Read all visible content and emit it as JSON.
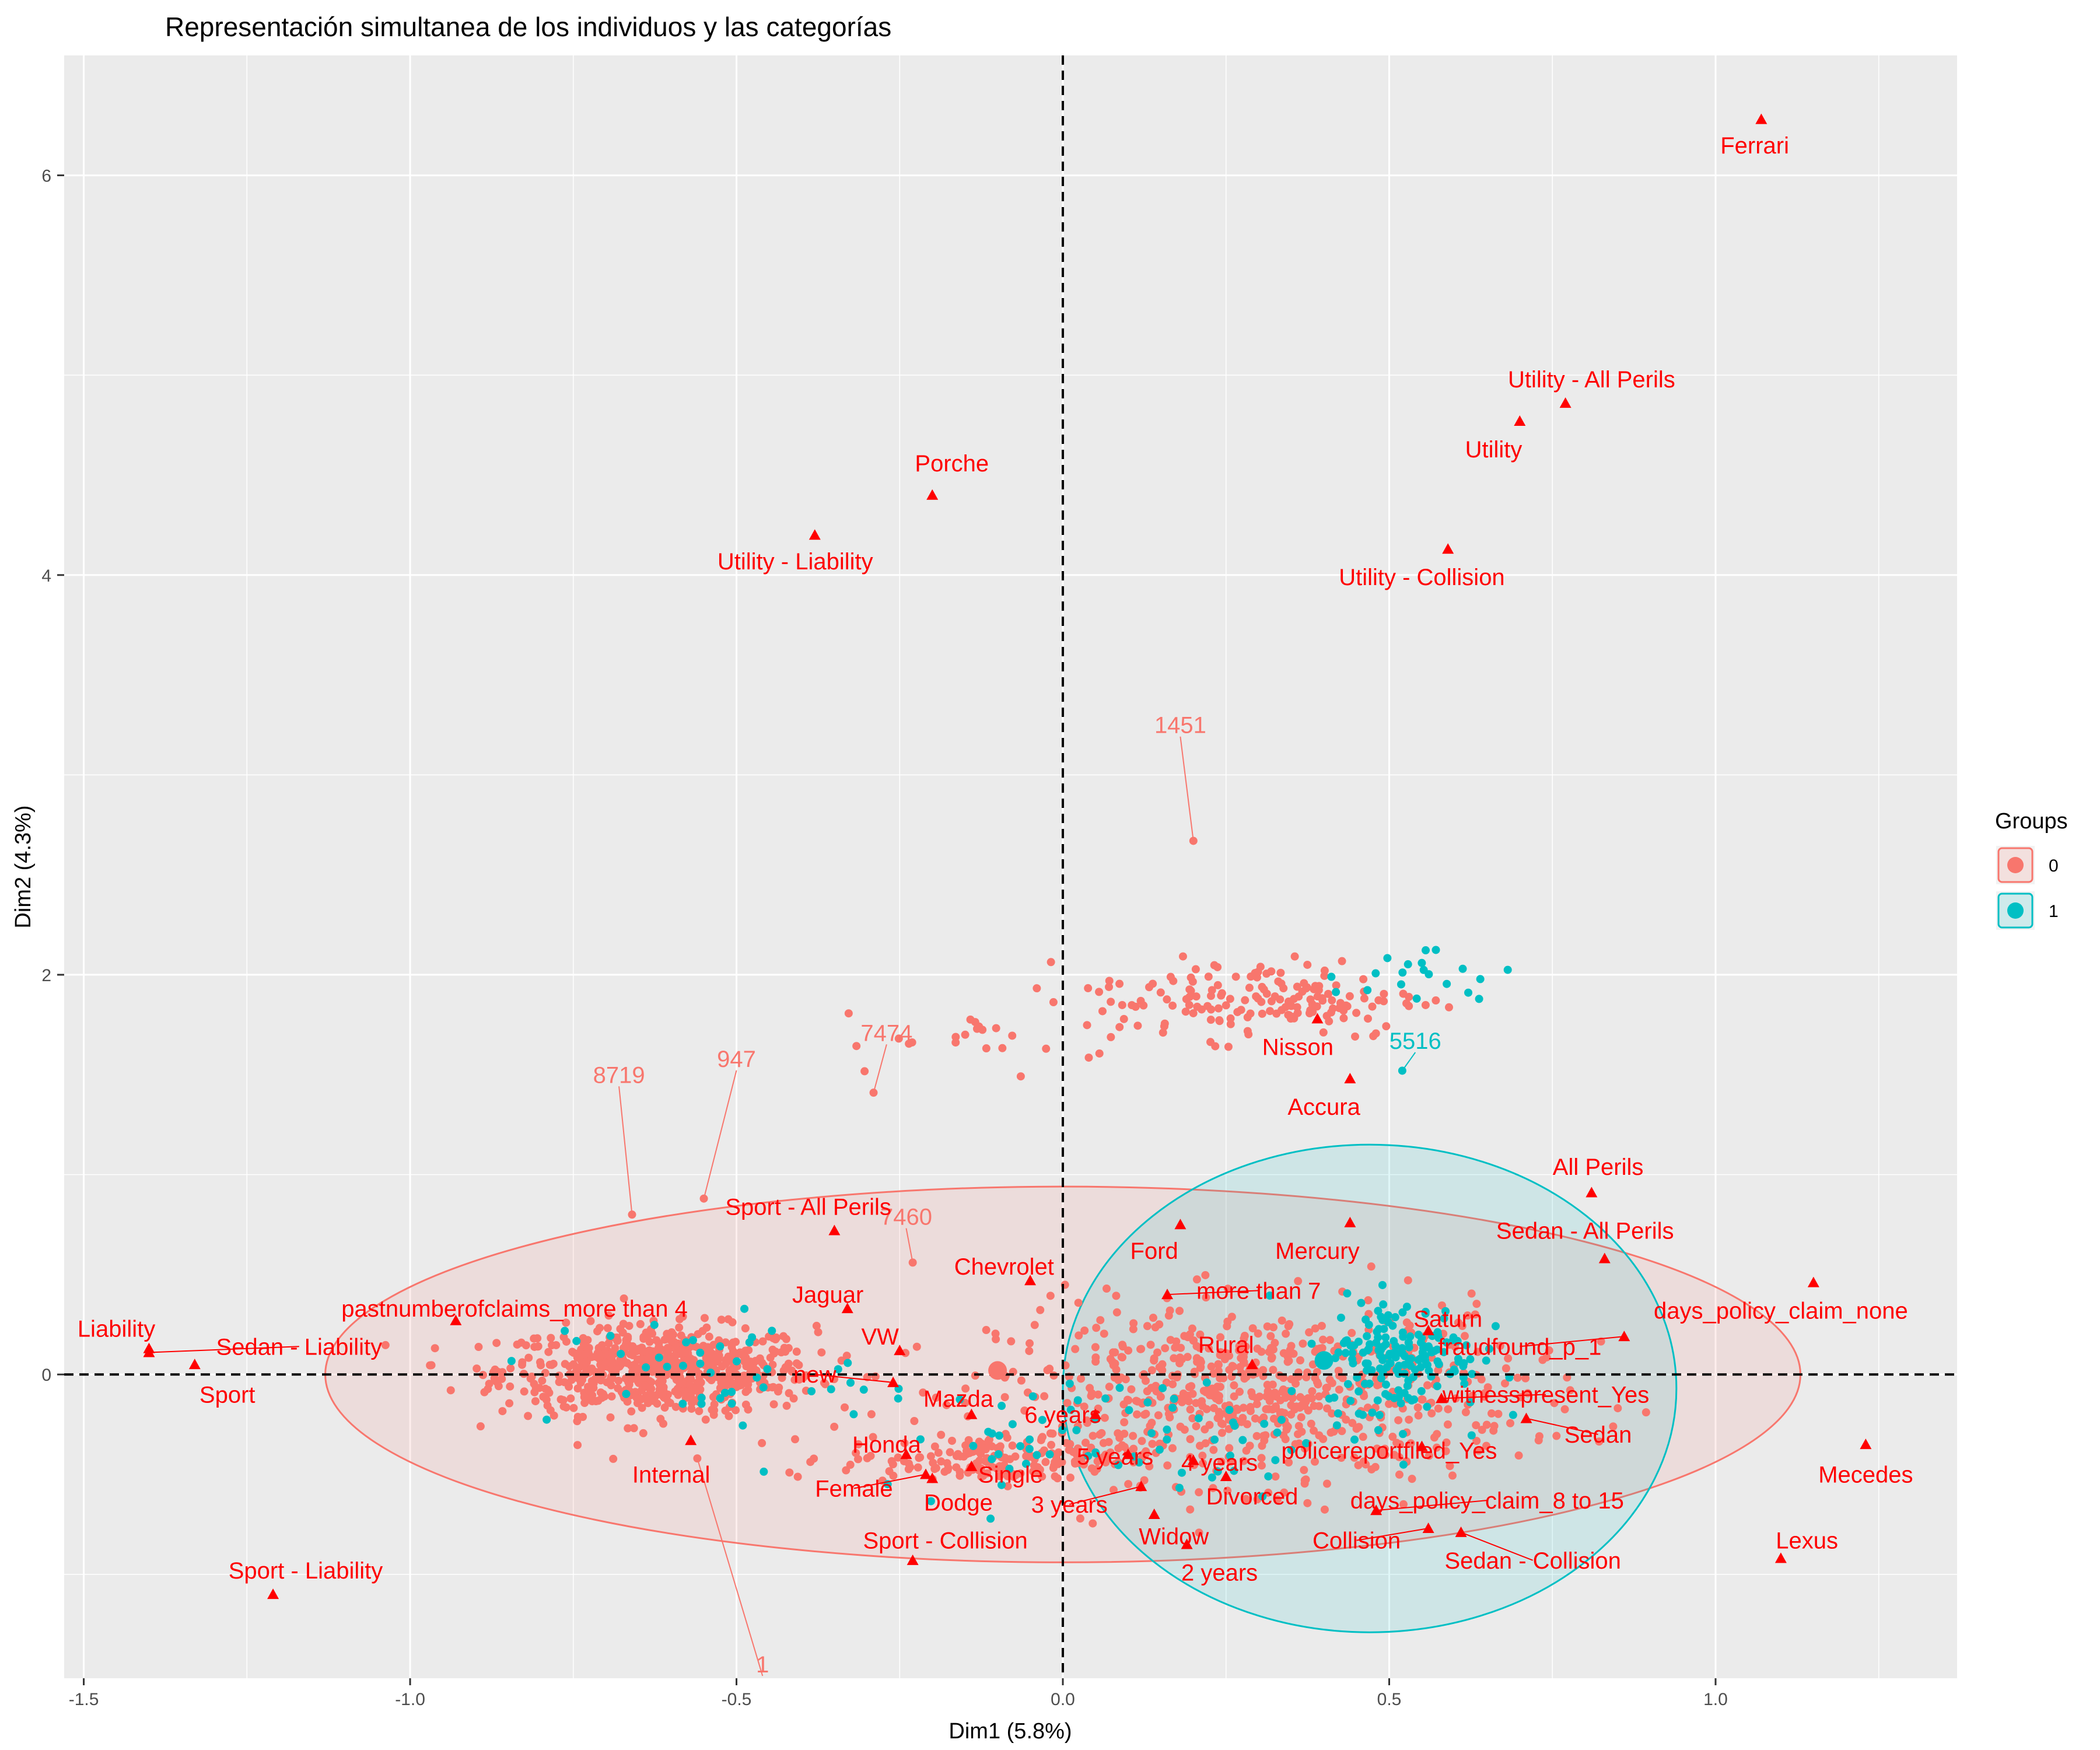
{
  "chart_data": {
    "type": "scatter",
    "title": "Representación simultanea de los individuos y las categorías",
    "xlabel": "Dim1 (5.8%)",
    "ylabel": "Dim2 (4.3%)",
    "xlim": [
      -1.53,
      1.37
    ],
    "ylim": [
      -1.52,
      6.6
    ],
    "x_ticks": [
      -1.5,
      -1.0,
      -0.5,
      0.0,
      0.5,
      1.0
    ],
    "x_tick_labels": [
      "-1.5",
      "-1.0",
      "-0.5",
      "0.0",
      "0.5",
      "1.0"
    ],
    "y_ticks": [
      0,
      2,
      4,
      6
    ],
    "y_tick_labels": [
      "0",
      "2",
      "4",
      "6"
    ],
    "grid": true,
    "reference_lines": {
      "x": 0,
      "y": 0,
      "style": "dashed"
    },
    "legend": {
      "title": "Groups",
      "placement": "right",
      "entries": [
        {
          "label": "0",
          "color": "#F8766D"
        },
        {
          "label": "1",
          "color": "#00BFC4"
        }
      ]
    },
    "colors": {
      "group0": "#F8766D",
      "group1": "#00BFC4",
      "category": "#FF0000",
      "panel": "#EBEBEB",
      "grid": "#FFFFFF"
    },
    "ellipses": [
      {
        "group": "0",
        "center": [
          0.0,
          0.0
        ],
        "rx": 1.13,
        "ry": 0.94
      },
      {
        "group": "1",
        "center": [
          0.47,
          -0.07
        ],
        "rx": 0.47,
        "ry": 1.22
      }
    ],
    "group_centroids": [
      {
        "group": "0",
        "x": -0.1,
        "y": 0.02
      },
      {
        "group": "1",
        "x": 0.4,
        "y": 0.07
      }
    ],
    "clusters": [
      {
        "group": "0",
        "center": [
          -0.62,
          0.02
        ],
        "spread": [
          0.12,
          0.11
        ],
        "count": 700
      },
      {
        "group": "0",
        "center": [
          0.3,
          -0.1
        ],
        "spread": [
          0.2,
          0.22
        ],
        "count": 700
      },
      {
        "group": "0",
        "center": [
          -0.1,
          -0.42
        ],
        "spread": [
          0.12,
          0.06
        ],
        "count": 180
      },
      {
        "group": "0",
        "center": [
          0.3,
          1.88
        ],
        "spread": [
          0.13,
          0.1
        ],
        "count": 170
      },
      {
        "group": "0",
        "center": [
          -0.1,
          1.67
        ],
        "spread": [
          0.12,
          0.07
        ],
        "count": 22
      },
      {
        "group": "1",
        "center": [
          0.52,
          0.1
        ],
        "spread": [
          0.06,
          0.14
        ],
        "count": 170
      },
      {
        "group": "1",
        "center": [
          0.1,
          -0.3
        ],
        "spread": [
          0.2,
          0.14
        ],
        "count": 80
      },
      {
        "group": "1",
        "center": [
          0.55,
          2.0
        ],
        "spread": [
          0.07,
          0.08
        ],
        "count": 20
      },
      {
        "group": "1",
        "center": [
          -0.55,
          0.02
        ],
        "spread": [
          0.12,
          0.15
        ],
        "count": 40
      }
    ],
    "individuals": [
      {
        "label": "1451",
        "group": "0",
        "x": 0.2,
        "y": 2.67,
        "lx": 0.18,
        "ly": 3.25
      },
      {
        "label": "8719",
        "group": "0",
        "x": -0.66,
        "y": 0.8,
        "lx": -0.68,
        "ly": 1.5
      },
      {
        "label": "947",
        "group": "0",
        "x": -0.55,
        "y": 0.88,
        "lx": -0.5,
        "ly": 1.58
      },
      {
        "label": "7474",
        "group": "0",
        "x": -0.29,
        "y": 1.41,
        "lx": -0.27,
        "ly": 1.71
      },
      {
        "label": "7460",
        "group": "0",
        "x": -0.23,
        "y": 0.56,
        "lx": -0.24,
        "ly": 0.79
      },
      {
        "label": "5516",
        "group": "1",
        "x": 0.52,
        "y": 1.52,
        "lx": 0.54,
        "ly": 1.67
      },
      {
        "label": "1",
        "group": "0",
        "x": -0.56,
        "y": -0.42,
        "lx": -0.46,
        "ly": -1.45
      }
    ],
    "categories": [
      {
        "label": "Ferrari",
        "x": 1.07,
        "y": 6.28,
        "lx": 1.06,
        "ly": 6.15
      },
      {
        "label": "Utility - All Perils",
        "x": 0.77,
        "y": 4.86,
        "lx": 0.81,
        "ly": 4.98
      },
      {
        "label": "Utility",
        "x": 0.7,
        "y": 4.77,
        "lx": 0.66,
        "ly": 4.63
      },
      {
        "label": "Porche",
        "x": -0.2,
        "y": 4.4,
        "lx": -0.17,
        "ly": 4.56
      },
      {
        "label": "Utility - Liability",
        "x": -0.38,
        "y": 4.2,
        "lx": -0.41,
        "ly": 4.07
      },
      {
        "label": "Utility - Collision",
        "x": 0.59,
        "y": 4.13,
        "lx": 0.55,
        "ly": 3.99
      },
      {
        "label": "Nisson",
        "x": 0.39,
        "y": 1.78,
        "lx": 0.36,
        "ly": 1.64
      },
      {
        "label": "Accura",
        "x": 0.44,
        "y": 1.48,
        "lx": 0.4,
        "ly": 1.34
      },
      {
        "label": "All Perils",
        "x": 0.81,
        "y": 0.91,
        "lx": 0.82,
        "ly": 1.04
      },
      {
        "label": "Sedan - All Perils",
        "x": 0.83,
        "y": 0.58,
        "lx": 0.8,
        "ly": 0.72
      },
      {
        "label": "Sport - All Perils",
        "x": -0.35,
        "y": 0.72,
        "lx": -0.39,
        "ly": 0.84
      },
      {
        "label": "Ford",
        "x": 0.18,
        "y": 0.75,
        "lx": 0.14,
        "ly": 0.62
      },
      {
        "label": "Mercury",
        "x": 0.44,
        "y": 0.76,
        "lx": 0.39,
        "ly": 0.62
      },
      {
        "label": "Chevrolet",
        "x": -0.05,
        "y": 0.47,
        "lx": -0.09,
        "ly": 0.54
      },
      {
        "label": "more than 7",
        "x": 0.16,
        "y": 0.4,
        "lx": 0.3,
        "ly": 0.42
      },
      {
        "label": "days_policy_claim_none",
        "x": 1.15,
        "y": 0.46,
        "lx": 1.1,
        "ly": 0.32
      },
      {
        "label": "Saturn",
        "x": 0.56,
        "y": 0.22,
        "lx": 0.59,
        "ly": 0.28
      },
      {
        "label": "pastnumberofclaims_more than 4",
        "x": -0.93,
        "y": 0.27,
        "lx": -0.84,
        "ly": 0.33
      },
      {
        "label": "Jaguar",
        "x": -0.33,
        "y": 0.33,
        "lx": -0.36,
        "ly": 0.4
      },
      {
        "label": "Liability",
        "x": -1.4,
        "y": 0.13,
        "lx": -1.45,
        "ly": 0.23
      },
      {
        "label": "Sedan - Liability",
        "x": -1.4,
        "y": 0.11,
        "lx": -1.17,
        "ly": 0.14
      },
      {
        "label": "Sport",
        "x": -1.33,
        "y": 0.05,
        "lx": -1.28,
        "ly": -0.1
      },
      {
        "label": "fraudfound_p_1",
        "x": 0.86,
        "y": 0.19,
        "lx": 0.7,
        "ly": 0.14
      },
      {
        "label": "VW",
        "x": -0.25,
        "y": 0.12,
        "lx": -0.28,
        "ly": 0.19
      },
      {
        "label": "Rural",
        "x": 0.29,
        "y": 0.05,
        "lx": 0.25,
        "ly": 0.15
      },
      {
        "label": "new",
        "x": -0.26,
        "y": -0.04,
        "lx": -0.38,
        "ly": 0.0
      },
      {
        "label": "witnesspresent_Yes",
        "x": 0.58,
        "y": -0.12,
        "lx": 0.74,
        "ly": -0.1
      },
      {
        "label": "Sedan",
        "x": 0.71,
        "y": -0.22,
        "lx": 0.82,
        "ly": -0.3
      },
      {
        "label": "6 years",
        "x": 0.05,
        "y": -0.2,
        "lx": 0.0,
        "ly": -0.2
      },
      {
        "label": "Mazda",
        "x": -0.14,
        "y": -0.2,
        "lx": -0.16,
        "ly": -0.12
      },
      {
        "label": "Internal",
        "x": -0.57,
        "y": -0.33,
        "lx": -0.6,
        "ly": -0.5
      },
      {
        "label": "Honda",
        "x": -0.24,
        "y": -0.4,
        "lx": -0.27,
        "ly": -0.35
      },
      {
        "label": "Female",
        "x": -0.21,
        "y": -0.5,
        "lx": -0.32,
        "ly": -0.57
      },
      {
        "label": "Single",
        "x": -0.14,
        "y": -0.46,
        "lx": -0.08,
        "ly": -0.5
      },
      {
        "label": "5 years",
        "x": 0.1,
        "y": -0.4,
        "lx": 0.08,
        "ly": -0.41
      },
      {
        "label": "4 years",
        "x": 0.2,
        "y": -0.43,
        "lx": 0.24,
        "ly": -0.44
      },
      {
        "label": "policereportfiled_Yes",
        "x": 0.55,
        "y": -0.36,
        "lx": 0.5,
        "ly": -0.38
      },
      {
        "label": "Dodge",
        "x": -0.2,
        "y": -0.52,
        "lx": -0.16,
        "ly": -0.64
      },
      {
        "label": "3 years",
        "x": 0.12,
        "y": -0.56,
        "lx": 0.01,
        "ly": -0.65
      },
      {
        "label": "Divorced",
        "x": 0.25,
        "y": -0.51,
        "lx": 0.29,
        "ly": -0.61
      },
      {
        "label": "days_policy_claim_8 to 15",
        "x": 0.48,
        "y": -0.68,
        "lx": 0.65,
        "ly": -0.63
      },
      {
        "label": "Widow",
        "x": 0.14,
        "y": -0.7,
        "lx": 0.17,
        "ly": -0.81
      },
      {
        "label": "Collision",
        "x": 0.56,
        "y": -0.77,
        "lx": 0.45,
        "ly": -0.83
      },
      {
        "label": "Sedan - Collision",
        "x": 0.61,
        "y": -0.79,
        "lx": 0.72,
        "ly": -0.93
      },
      {
        "label": "Sport - Collision",
        "x": -0.23,
        "y": -0.93,
        "lx": -0.18,
        "ly": -0.83
      },
      {
        "label": "2 years",
        "x": 0.19,
        "y": -0.85,
        "lx": 0.24,
        "ly": -0.99
      },
      {
        "label": "Mecedes",
        "x": 1.23,
        "y": -0.35,
        "lx": 1.23,
        "ly": -0.5
      },
      {
        "label": "Lexus",
        "x": 1.1,
        "y": -0.92,
        "lx": 1.14,
        "ly": -0.83
      },
      {
        "label": "Sport - Liability",
        "x": -1.21,
        "y": -1.1,
        "lx": -1.16,
        "ly": -0.98
      }
    ]
  }
}
